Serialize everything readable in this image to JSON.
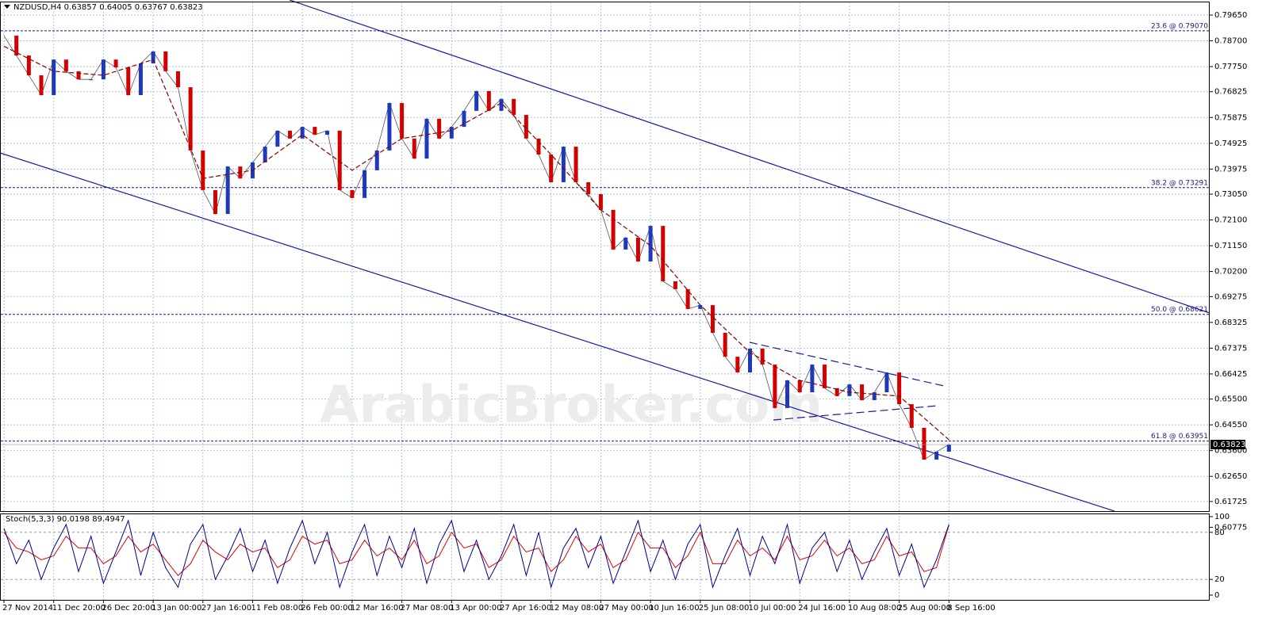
{
  "chart_data": [
    {
      "type": "candlestick",
      "symbol": "NZDUSD,H4",
      "ohlc": [
        0.63857,
        0.64005,
        0.63767,
        0.63823
      ],
      "watermark": "ArabicBroker.com",
      "categories": [
        "27 Nov 2014",
        "11 Dec 20:00",
        "26 Dec 20:00",
        "13 Jan 00:00",
        "27 Jan 16:00",
        "11 Feb 08:00",
        "26 Feb 00:00",
        "12 Mar 16:00",
        "27 Mar 08:00",
        "13 Apr 00:00",
        "27 Apr 16:00",
        "12 May 08:00",
        "27 May 00:00",
        "10 Jun 16:00",
        "25 Jun 08:00",
        "10 Jul 00:00",
        "24 Jul 16:00",
        "10 Aug 08:00",
        "25 Aug 00:00",
        "8 Sep 16:00"
      ],
      "price": [
        0.7889,
        0.7816,
        0.7743,
        0.767,
        0.7801,
        0.7758,
        0.7728,
        0.7728,
        0.7801,
        0.7772,
        0.767,
        0.7787,
        0.7831,
        0.7758,
        0.7699,
        0.7466,
        0.732,
        0.7232,
        0.7407,
        0.7363,
        0.7422,
        0.748,
        0.7539,
        0.751,
        0.7553,
        0.7524,
        0.7539,
        0.732,
        0.7291,
        0.7393,
        0.7466,
        0.7641,
        0.751,
        0.7436,
        0.7583,
        0.751,
        0.7553,
        0.7612,
        0.7685,
        0.7612,
        0.7656,
        0.7597,
        0.751,
        0.7451,
        0.7349,
        0.748,
        0.7349,
        0.7305,
        0.7247,
        0.7101,
        0.7145,
        0.7057,
        0.7188,
        0.6984,
        0.6955,
        0.6882,
        0.6896,
        0.6794,
        0.6706,
        0.6648,
        0.6736,
        0.6677,
        0.6517,
        0.6619,
        0.6575,
        0.6677,
        0.659,
        0.6561,
        0.6604,
        0.6546,
        0.6575,
        0.6648,
        0.6531,
        0.6444,
        0.6327,
        0.6356,
        0.63823
      ],
      "ma": [
        0.785,
        0.7758,
        0.7743,
        0.7801,
        0.7363,
        0.7393,
        0.7524,
        0.7393,
        0.751,
        0.7539,
        0.7641,
        0.7451,
        0.7247,
        0.7115,
        0.6896,
        0.6721,
        0.6619,
        0.6575,
        0.6561,
        0.64
      ],
      "up_color": "#1c39bb",
      "down_color": "#d40000",
      "ma_color": "#8b0000",
      "ylim": [
        0.61371,
        0.80088
      ],
      "yticks": [
        {
          "value": 0.7965,
          "label": "0.79650"
        },
        {
          "value": 0.787,
          "label": "0.78700"
        },
        {
          "value": 0.7775,
          "label": "0.77750"
        },
        {
          "value": 0.76825,
          "label": "0.76825"
        },
        {
          "value": 0.75875,
          "label": "0.75875"
        },
        {
          "value": 0.74925,
          "label": "0.74925"
        },
        {
          "value": 0.73975,
          "label": "0.73975"
        },
        {
          "value": 0.7305,
          "label": "0.73050"
        },
        {
          "value": 0.721,
          "label": "0.72100"
        },
        {
          "value": 0.7115,
          "label": "0.71150"
        },
        {
          "value": 0.702,
          "label": "0.70200"
        },
        {
          "value": 0.69275,
          "label": "0.69275"
        },
        {
          "value": 0.68325,
          "label": "0.68325"
        },
        {
          "value": 0.67375,
          "label": "0.67375"
        },
        {
          "value": 0.66425,
          "label": "0.66425"
        },
        {
          "value": 0.655,
          "label": "0.65500"
        },
        {
          "value": 0.6455,
          "label": "0.64550"
        },
        {
          "value": 0.636,
          "label": "0.63600"
        },
        {
          "value": 0.6265,
          "label": "0.62650"
        },
        {
          "value": 0.61725,
          "label": "0.61725"
        },
        {
          "value": 0.60775,
          "label": "0.60775"
        }
      ],
      "fib_levels": [
        {
          "value": 0.7907,
          "label": "23.6 @ 0.79070"
        },
        {
          "value": 0.73291,
          "label": "38.2 @ 0.73291"
        },
        {
          "value": 0.68621,
          "label": "50.0 @ 0.68621"
        },
        {
          "value": 0.63951,
          "label": "61.8 @ 0.63951"
        }
      ],
      "grid": true
    },
    {
      "type": "oscillator",
      "title": "Stoch(5,3,3)",
      "k": [
        85,
        40,
        70,
        20,
        60,
        90,
        30,
        75,
        15,
        55,
        95,
        25,
        80,
        35,
        10,
        65,
        90,
        20,
        50,
        85,
        30,
        70,
        15,
        60,
        95,
        40,
        80,
        10,
        55,
        90,
        25,
        75,
        35,
        85,
        15,
        65,
        95,
        30,
        70,
        20,
        50,
        90,
        25,
        80,
        10,
        60,
        85,
        35,
        75,
        15,
        55,
        95,
        30,
        70,
        20,
        65,
        90,
        10,
        50,
        85,
        25,
        75,
        40,
        90,
        15,
        60,
        80,
        30,
        70,
        20,
        55,
        85,
        25,
        65,
        10,
        45,
        90.0198
      ],
      "d": [
        80,
        60,
        55,
        45,
        50,
        75,
        60,
        60,
        40,
        50,
        75,
        55,
        65,
        45,
        25,
        40,
        70,
        55,
        45,
        65,
        55,
        60,
        35,
        45,
        75,
        65,
        70,
        40,
        45,
        70,
        50,
        60,
        45,
        70,
        40,
        50,
        80,
        60,
        65,
        35,
        45,
        75,
        55,
        60,
        30,
        45,
        75,
        55,
        65,
        35,
        45,
        80,
        60,
        60,
        35,
        50,
        80,
        40,
        40,
        70,
        50,
        60,
        45,
        75,
        45,
        50,
        70,
        50,
        60,
        40,
        45,
        75,
        50,
        55,
        30,
        35,
        89.4947
      ],
      "k_color": "#00008b",
      "d_color": "#e00000",
      "ylim": [
        0,
        100
      ],
      "yticks": [
        0,
        20,
        80,
        100
      ]
    }
  ]
}
